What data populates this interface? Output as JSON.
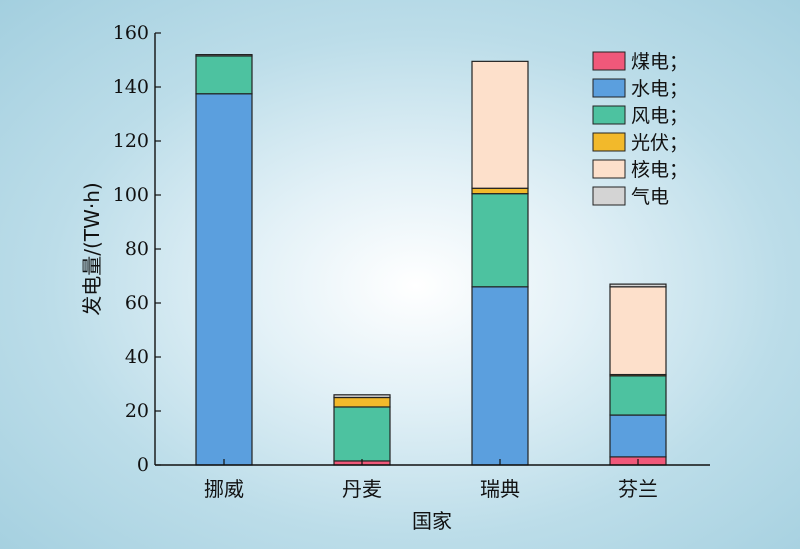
{
  "chart_data": {
    "type": "bar",
    "stacked": true,
    "categories": [
      "挪威",
      "丹麦",
      "瑞典",
      "芬兰"
    ],
    "xlabel": "国家",
    "ylabel": "发电量/(TW·h)",
    "ylim": [
      0,
      160
    ],
    "yticks": [
      0,
      20,
      40,
      60,
      80,
      100,
      120,
      140,
      160
    ],
    "legend_position": "top-right",
    "grid": false,
    "series": [
      {
        "name": "煤电",
        "legend_label": "煤电；",
        "color": "#f0587a",
        "values": [
          0,
          1.5,
          0,
          3
        ]
      },
      {
        "name": "水电",
        "legend_label": "水电；",
        "color": "#5b9fde",
        "values": [
          137.5,
          0,
          66,
          15.5
        ]
      },
      {
        "name": "风电",
        "legend_label": "风电；",
        "color": "#4dc2a0",
        "values": [
          14,
          20,
          34.5,
          14.5
        ]
      },
      {
        "name": "光伏",
        "legend_label": "光伏；",
        "color": "#f2b92b",
        "values": [
          0,
          3.5,
          2,
          0.5
        ]
      },
      {
        "name": "核电",
        "legend_label": "核电；",
        "color": "#fde0cb",
        "values": [
          0,
          0,
          47,
          32.5
        ]
      },
      {
        "name": "气电",
        "legend_label": "气电",
        "color": "#d4d4d4",
        "values": [
          0.5,
          1,
          0,
          1
        ]
      }
    ]
  }
}
